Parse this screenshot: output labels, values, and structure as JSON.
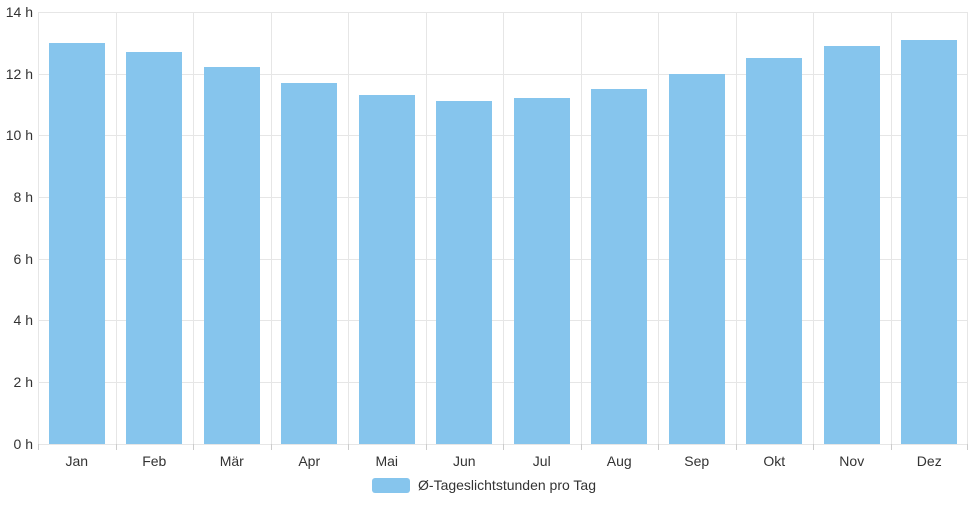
{
  "chart_data": {
    "type": "bar",
    "title": "",
    "categories": [
      "Jan",
      "Feb",
      "Mär",
      "Apr",
      "Mai",
      "Jun",
      "Jul",
      "Aug",
      "Sep",
      "Okt",
      "Nov",
      "Dez"
    ],
    "values": [
      13.0,
      12.7,
      12.2,
      11.7,
      11.3,
      11.1,
      11.2,
      11.5,
      12.0,
      12.5,
      12.9,
      13.1
    ],
    "series_name": "Ø-Tageslichtstunden pro Tag",
    "xlabel": "",
    "ylabel": "",
    "ylim": [
      0,
      14
    ],
    "ytick_step": 2,
    "ytick_labels": [
      "0 h",
      "2 h",
      "4 h",
      "6 h",
      "8 h",
      "10 h",
      "12 h",
      "14 h"
    ],
    "grid": true,
    "legend_position": "bottom",
    "colors": {
      "bar": "#86C5ED",
      "grid": "#E6E6E6",
      "tick": "#CCCCCC",
      "label": "#333333",
      "background": "#FFFFFF"
    }
  },
  "legend": {
    "label": "Ø-Tageslichtstunden pro Tag"
  }
}
